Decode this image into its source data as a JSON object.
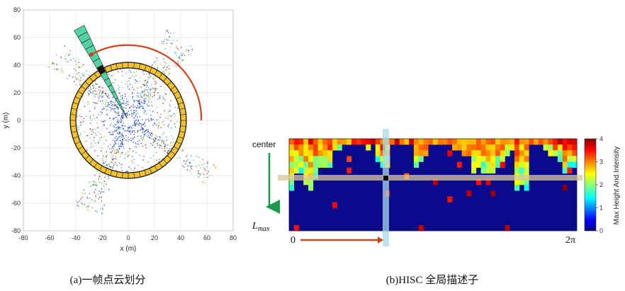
{
  "chart_data": [
    {
      "type": "scatter",
      "xlabel": "x (m)",
      "ylabel": "y (m)",
      "xlim": [
        -80,
        80
      ],
      "ylim": [
        -80,
        80
      ],
      "x_ticks": [
        "-80",
        "-60",
        "-40",
        "-20",
        "0",
        "20",
        "40",
        "60",
        "80"
      ],
      "y_ticks": [
        "80",
        "60",
        "40",
        "20",
        "0",
        "-20",
        "-40",
        "-60",
        "-80"
      ],
      "grid": true,
      "caption": "(a)一帧点云划分"
    },
    {
      "type": "heatmap",
      "annotations": {
        "row_start": "center",
        "row_end": "L",
        "row_end_sub": "max",
        "col_start": "0",
        "col_end": "2π"
      },
      "colorbar": {
        "label": "Max Height And Intensity",
        "ticks": [
          "4",
          "3",
          "2",
          "1",
          "0"
        ],
        "range": [
          0,
          4
        ]
      },
      "caption": "(b)HISC 全局描述子"
    }
  ]
}
